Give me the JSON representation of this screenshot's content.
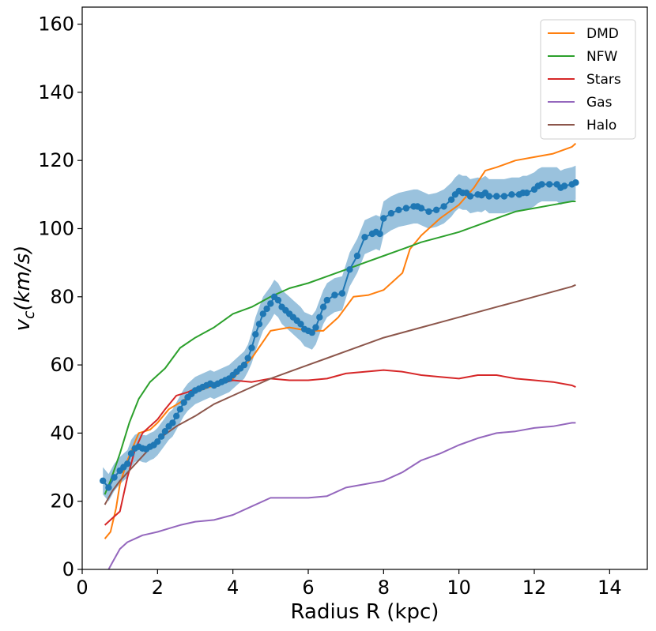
{
  "chart_data": {
    "type": "line",
    "xlabel": "Radius R (kpc)",
    "ylabel_main": "v",
    "ylabel_sub": "c",
    "ylabel_rest": "(km/s)",
    "xlim": [
      0,
      15
    ],
    "ylim": [
      0,
      165
    ],
    "xticks": [
      0,
      2,
      4,
      6,
      8,
      10,
      12,
      14
    ],
    "yticks": [
      0,
      20,
      40,
      60,
      80,
      100,
      120,
      140,
      160
    ],
    "legend_position": "top-right",
    "observed": {
      "color": "#1f77b4",
      "band_color": "#1f77b4",
      "x": [
        0.55,
        0.7,
        0.85,
        1.0,
        1.1,
        1.2,
        1.3,
        1.4,
        1.5,
        1.6,
        1.7,
        1.8,
        1.9,
        2.0,
        2.1,
        2.2,
        2.3,
        2.4,
        2.5,
        2.6,
        2.7,
        2.8,
        2.9,
        3.0,
        3.1,
        3.2,
        3.3,
        3.4,
        3.5,
        3.6,
        3.7,
        3.8,
        3.9,
        4.0,
        4.1,
        4.2,
        4.3,
        4.4,
        4.5,
        4.6,
        4.7,
        4.8,
        4.9,
        5.0,
        5.1,
        5.2,
        5.3,
        5.4,
        5.5,
        5.6,
        5.7,
        5.8,
        5.9,
        6.0,
        6.1,
        6.2,
        6.3,
        6.4,
        6.5,
        6.7,
        6.9,
        7.1,
        7.3,
        7.5,
        7.7,
        7.8,
        7.9,
        8.0,
        8.2,
        8.4,
        8.6,
        8.8,
        8.9,
        9.0,
        9.2,
        9.4,
        9.6,
        9.8,
        9.9,
        10.0,
        10.1,
        10.2,
        10.3,
        10.5,
        10.6,
        10.7,
        10.8,
        11.0,
        11.2,
        11.4,
        11.6,
        11.7,
        11.8,
        12.0,
        12.1,
        12.2,
        12.4,
        12.6,
        12.7,
        12.8,
        13.0,
        13.1
      ],
      "y": [
        26,
        24,
        27,
        29,
        30,
        31,
        34,
        35.5,
        36,
        35.5,
        35.3,
        36,
        36.5,
        37.5,
        39,
        40.5,
        42,
        43,
        45,
        47,
        49,
        50.5,
        51.5,
        52.5,
        53,
        53.5,
        54,
        54.5,
        54,
        54.5,
        55,
        55.5,
        56,
        57,
        58,
        59,
        60,
        62,
        65,
        69,
        72,
        75,
        76.5,
        78,
        80,
        79,
        77,
        76,
        75,
        74,
        73,
        72,
        70.5,
        70,
        69.5,
        71,
        74,
        77,
        79,
        80.5,
        81,
        88,
        92,
        97.5,
        98.5,
        99,
        98.5,
        103,
        104.5,
        105.5,
        106,
        106.5,
        106.5,
        106,
        105,
        105.5,
        106.5,
        108.5,
        110,
        111,
        110.5,
        110.5,
        109.5,
        110,
        109.8,
        110.5,
        109.5,
        109.5,
        109.5,
        110,
        110,
        110.5,
        110.5,
        111.5,
        112.5,
        113,
        113,
        113,
        112,
        112.5,
        113,
        113.5
      ],
      "err": [
        4,
        4,
        4,
        4,
        4,
        4,
        4,
        4,
        4,
        4,
        4,
        4,
        4,
        4,
        4,
        4,
        4,
        4,
        4,
        4,
        4,
        4,
        4,
        4,
        4,
        4,
        4,
        4,
        4,
        4,
        4,
        4,
        4,
        4,
        4,
        4,
        4,
        4,
        4.5,
        5,
        5,
        5,
        5,
        5,
        5,
        5,
        5,
        5,
        5,
        5,
        5,
        5,
        5,
        5,
        5,
        5,
        5,
        5,
        5,
        5,
        5,
        5,
        5,
        5,
        5,
        5,
        5,
        5,
        5,
        5,
        5,
        5,
        5,
        5,
        5,
        5,
        5,
        5,
        5,
        5,
        5,
        5,
        5,
        5,
        5,
        5,
        5,
        5,
        5,
        5,
        5,
        5,
        5,
        5,
        5,
        5,
        5,
        5,
        5,
        5,
        5,
        5
      ]
    },
    "series": [
      {
        "name": "DMD",
        "color": "#ff7f0e",
        "x": [
          0.6,
          0.75,
          0.9,
          1.0,
          1.2,
          1.5,
          1.8,
          2.0,
          2.3,
          2.6,
          3.0,
          3.5,
          4.0,
          4.5,
          5.0,
          5.5,
          6.0,
          6.4,
          6.8,
          7.2,
          7.6,
          8.0,
          8.5,
          8.7,
          9.0,
          9.5,
          10.0,
          10.4,
          10.7,
          11.0,
          11.5,
          12.0,
          12.5,
          13.0,
          13.1
        ],
        "y": [
          9,
          11,
          18,
          25,
          32,
          40,
          41,
          43,
          47,
          49,
          52,
          54,
          56,
          62,
          70,
          71,
          70,
          70,
          74,
          80,
          80.5,
          82,
          87,
          94,
          98,
          103,
          107,
          112,
          117,
          118,
          120,
          121,
          122,
          124,
          125
        ]
      },
      {
        "name": "NFW",
        "color": "#2ca02c",
        "x": [
          0.6,
          0.75,
          1.0,
          1.25,
          1.5,
          1.8,
          2.2,
          2.6,
          3.0,
          3.5,
          4.0,
          4.5,
          5.0,
          5.5,
          6.0,
          6.5,
          7.0,
          7.5,
          8.0,
          8.5,
          9.0,
          9.5,
          10.0,
          10.5,
          11.0,
          11.5,
          12.0,
          12.5,
          13.0,
          13.1
        ],
        "y": [
          22,
          26,
          34,
          43,
          50,
          55,
          59,
          65,
          68,
          71,
          75,
          77,
          80,
          82.5,
          84,
          86,
          88,
          90,
          92,
          94,
          96,
          97.5,
          99,
          101,
          103,
          105,
          106,
          107,
          108,
          108
        ]
      },
      {
        "name": "Stars",
        "color": "#d62728",
        "x": [
          0.6,
          0.8,
          1.0,
          1.2,
          1.4,
          1.6,
          1.8,
          2.0,
          2.2,
          2.5,
          2.8,
          3.0,
          3.5,
          4.0,
          4.5,
          5.0,
          5.5,
          6.0,
          6.5,
          7.0,
          7.5,
          8.0,
          8.5,
          9.0,
          9.5,
          10.0,
          10.5,
          11.0,
          11.5,
          12.0,
          12.5,
          13.0,
          13.1
        ],
        "y": [
          13,
          15,
          17,
          27,
          35,
          40,
          42,
          44,
          47,
          51,
          52,
          53,
          54,
          55.5,
          55,
          56,
          55.5,
          55.5,
          56,
          57.5,
          58,
          58.5,
          58,
          57,
          56.5,
          56,
          57,
          57,
          56,
          55.5,
          55,
          54,
          53.5
        ]
      },
      {
        "name": "Gas",
        "color": "#9467bd",
        "x": [
          0.7,
          0.8,
          1.0,
          1.2,
          1.4,
          1.6,
          1.8,
          2.0,
          2.3,
          2.6,
          3.0,
          3.5,
          4.0,
          4.5,
          5.0,
          5.5,
          6.0,
          6.5,
          7.0,
          7.5,
          8.0,
          8.5,
          9.0,
          9.5,
          10.0,
          10.5,
          11.0,
          11.5,
          12.0,
          12.5,
          13.0,
          13.1
        ],
        "y": [
          0,
          2,
          6,
          8,
          9,
          10,
          10.5,
          11,
          12,
          13,
          14,
          14.5,
          16,
          18.5,
          21,
          21,
          21,
          21.5,
          24,
          25,
          26,
          28.5,
          32,
          34,
          36.5,
          38.5,
          40,
          40.5,
          41.5,
          42,
          43,
          43
        ]
      },
      {
        "name": "Halo",
        "color": "#8c564b",
        "x": [
          0.6,
          0.8,
          1.0,
          1.5,
          2.0,
          2.5,
          3.0,
          3.5,
          4.0,
          4.5,
          5.0,
          5.5,
          6.0,
          6.5,
          7.0,
          7.5,
          8.0,
          8.5,
          9.0,
          9.5,
          10.0,
          10.5,
          11.0,
          11.5,
          12.0,
          12.5,
          13.0,
          13.1
        ],
        "y": [
          19,
          23,
          26,
          32,
          38,
          42,
          45,
          48.5,
          51,
          53.5,
          56,
          58,
          60,
          62,
          64,
          66,
          68,
          69.5,
          71,
          72.5,
          74,
          75.5,
          77,
          78.5,
          80,
          81.5,
          83,
          83.5
        ]
      }
    ]
  }
}
